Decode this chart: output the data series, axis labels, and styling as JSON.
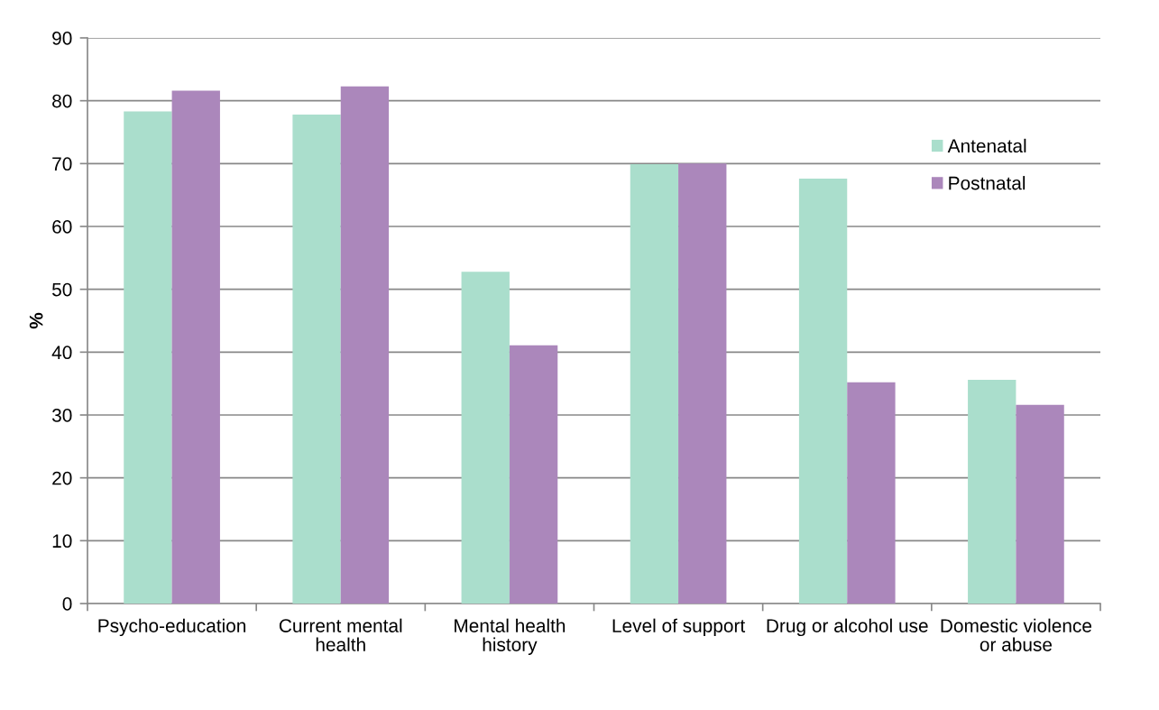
{
  "chart_data": {
    "type": "bar",
    "ylabel": "%",
    "categories": [
      "Psycho-education",
      "Current mental\nhealth",
      "Mental health\nhistory",
      "Level of support",
      "Drug or alcohol use",
      "Domestic violence\nor abuse"
    ],
    "series": [
      {
        "name": "Antenatal",
        "color": "#aadecc",
        "values": [
          78.3,
          77.8,
          52.8,
          69.9,
          67.6,
          35.6
        ]
      },
      {
        "name": "Postnatal",
        "color": "#ab87bb",
        "values": [
          81.6,
          82.3,
          41.1,
          70.0,
          35.2,
          31.6
        ]
      }
    ],
    "ylim": [
      0,
      90
    ],
    "yticks": [
      0,
      10,
      20,
      30,
      40,
      50,
      60,
      70,
      80,
      90
    ],
    "grid": "y",
    "legend": "top right"
  }
}
